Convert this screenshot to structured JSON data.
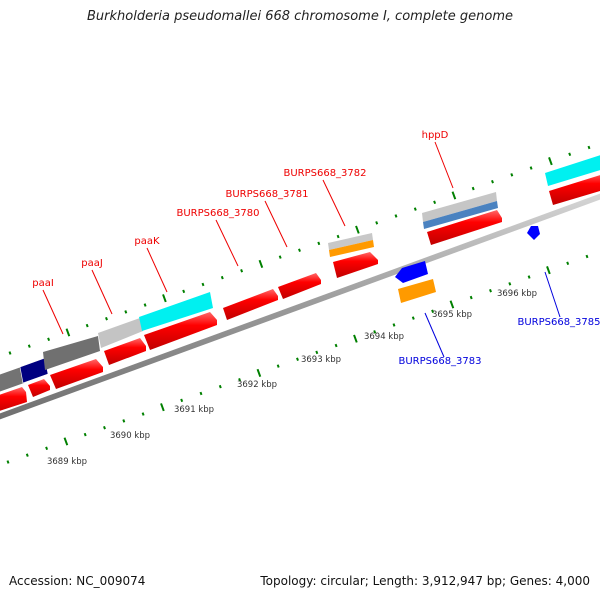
{
  "title": "Burkholderia pseudomallei 668 chromosome I, complete genome",
  "footer": {
    "accession": "Accession: NC_009074",
    "stats": "Topology: circular; Length: 3,912,947 bp; Genes: 4,000"
  },
  "colors": {
    "forward_label": "#ee0000",
    "reverse_label": "#0000dd",
    "cds": "#ff0000",
    "tick": "#008000",
    "backbone": "#999999",
    "cyan": "#00ffff",
    "light_gray": "#c0c0c0",
    "dark_gray": "#707070",
    "navy": "#000080",
    "orange": "#ff9900",
    "steel_blue": "#4a82c0",
    "blue": "#0000ff"
  },
  "scale_labels": [
    "3689 kbp",
    "3690 kbp",
    "3691 kbp",
    "3692 kbp",
    "3693 kbp",
    "3694 kbp",
    "3695 kbp",
    "3696 kbp"
  ],
  "forward_gene_labels": [
    "paaI",
    "paaJ",
    "paaK",
    "BURPS668_3780",
    "BURPS668_3781",
    "BURPS668_3782",
    "hppD"
  ],
  "reverse_gene_labels": [
    "BURPS668_3783",
    "BURPS668_3785"
  ]
}
